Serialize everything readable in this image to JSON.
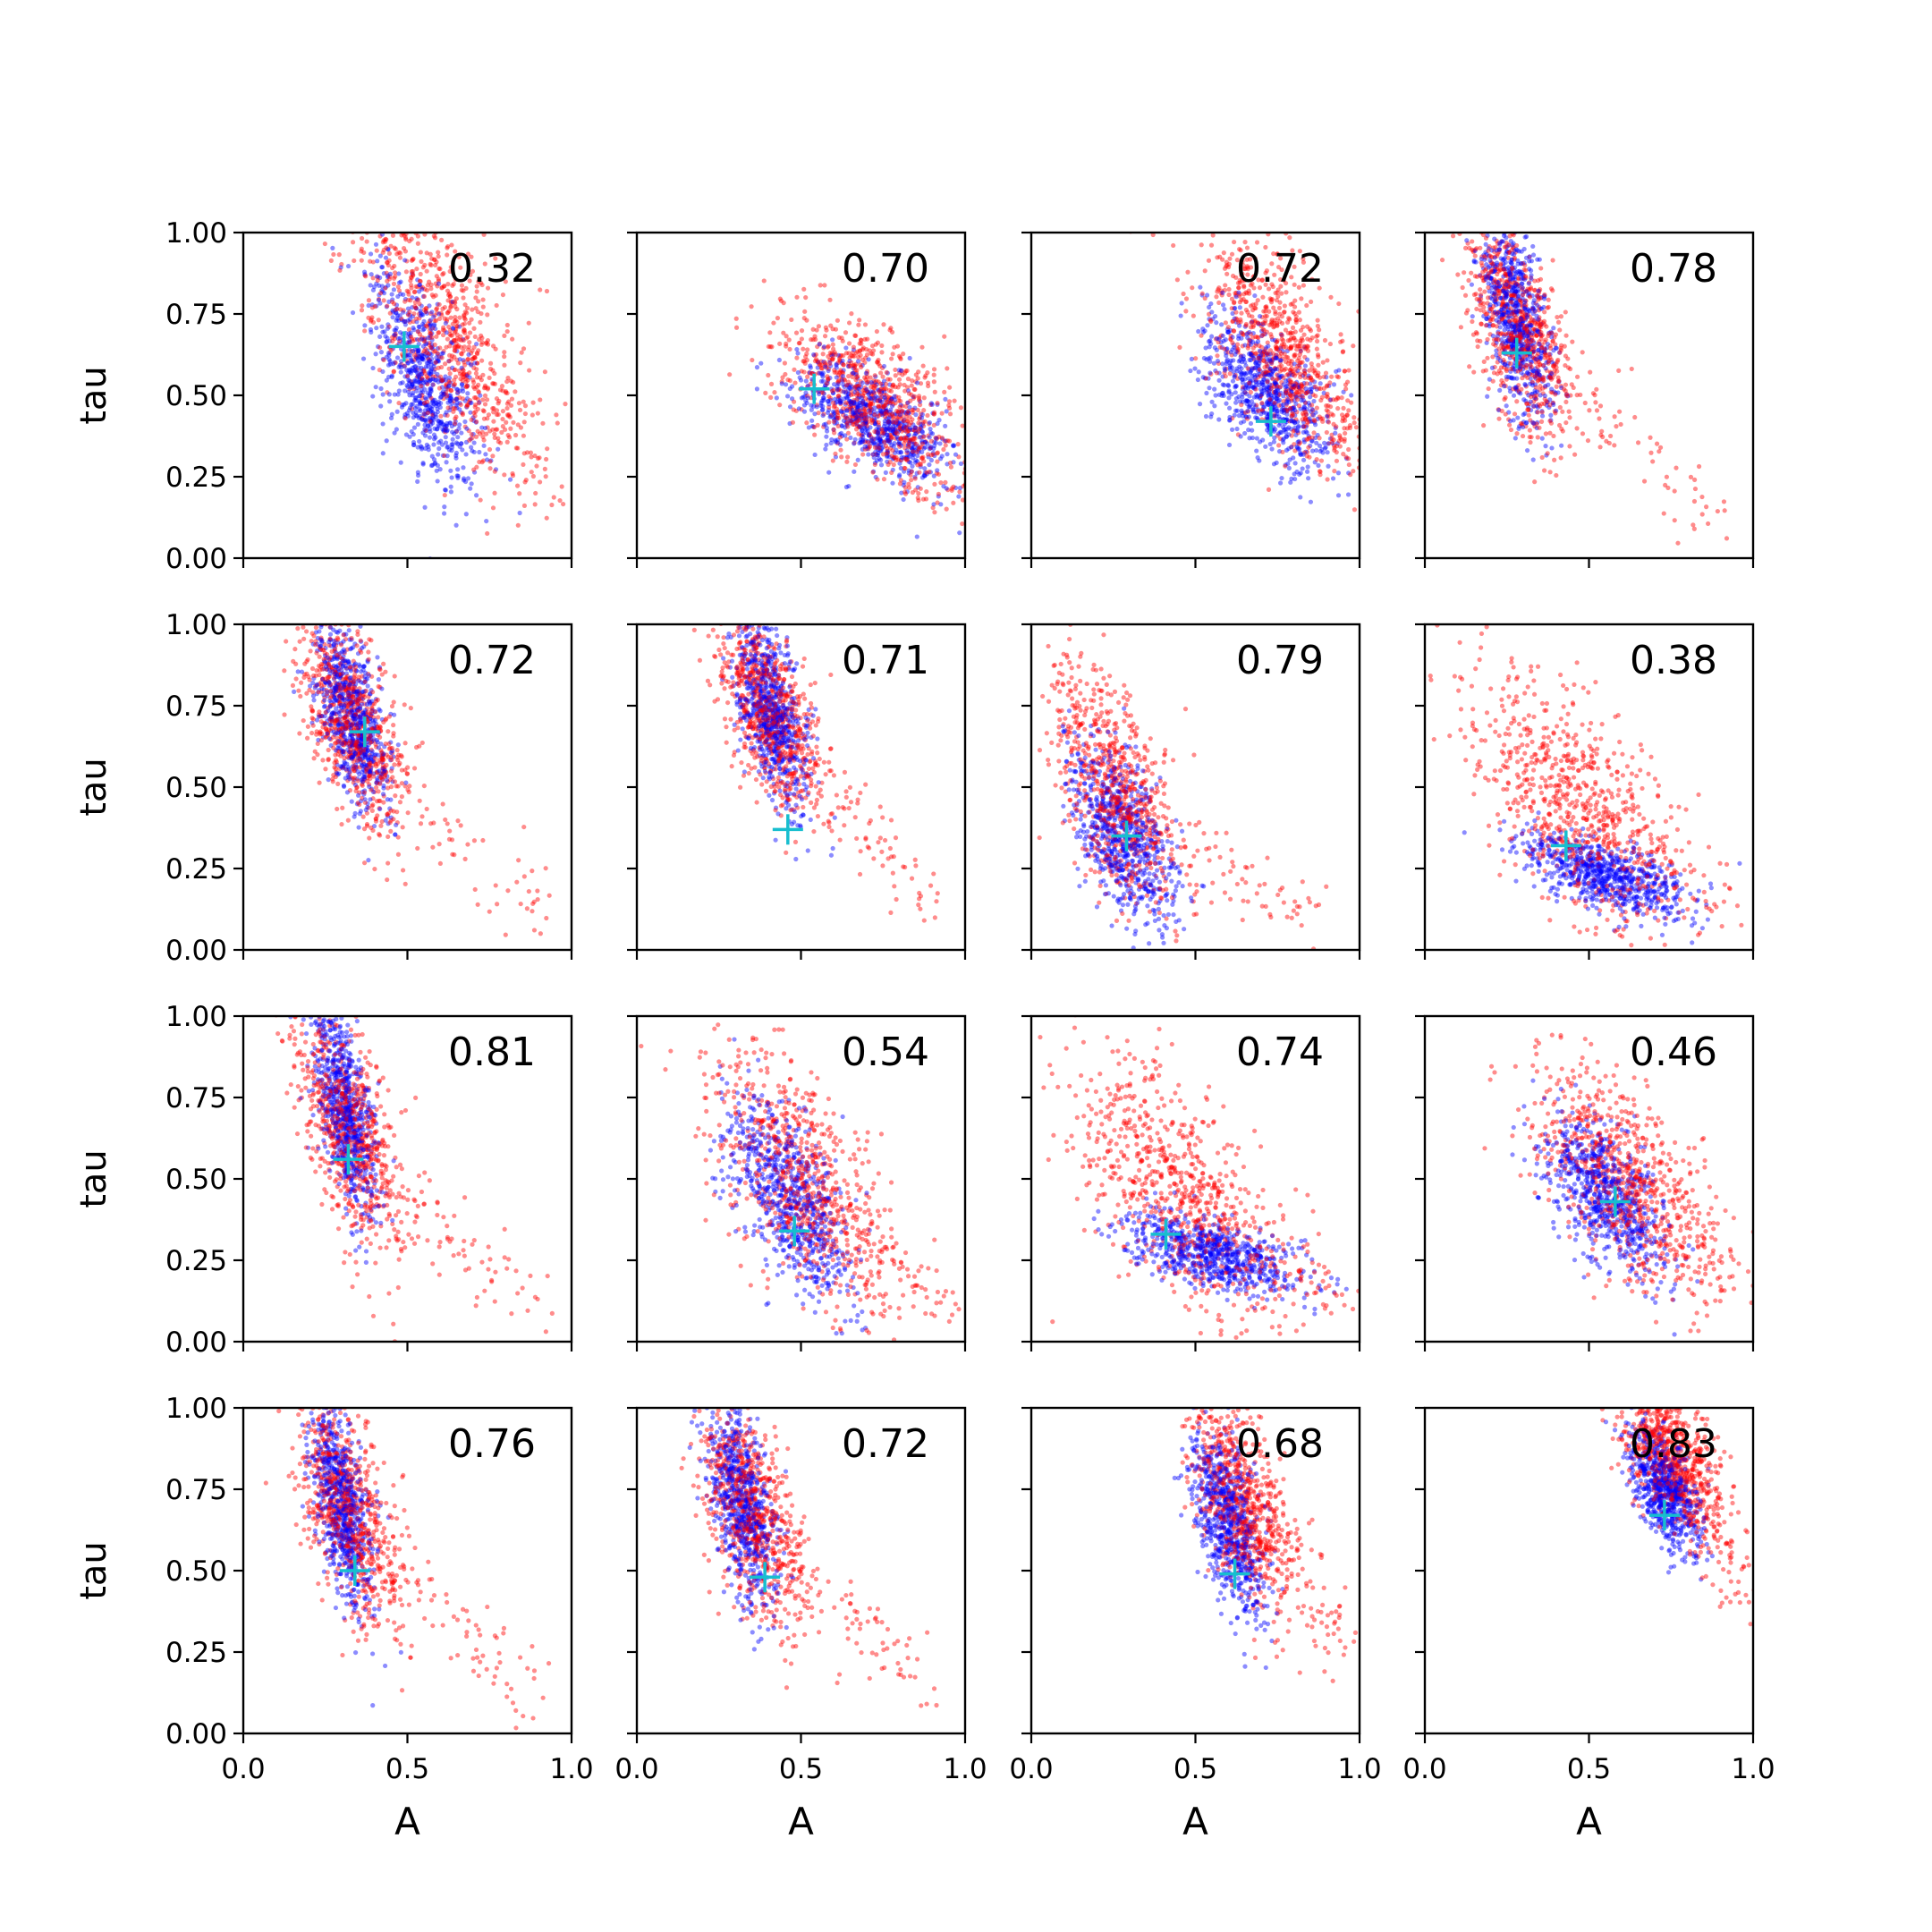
{
  "figure": {
    "xlabel": "A",
    "ylabel": "tau",
    "xticks": [
      "0.0",
      "0.5",
      "1.0"
    ],
    "yticks": [
      "0.00",
      "0.25",
      "0.50",
      "0.75",
      "1.00"
    ],
    "colors": {
      "series_blue": "#0000ff",
      "series_red": "#ff0000",
      "marker": "#17becf"
    }
  },
  "chart_data": [
    {
      "type": "scatter",
      "annotation": "0.32",
      "marker": [
        0.49,
        0.65
      ],
      "xlim": [
        0,
        1
      ],
      "ylim": [
        0,
        1
      ],
      "series": [
        {
          "color": "blue",
          "center": [
            0.55,
            0.55
          ],
          "spread": [
            0.1,
            0.22
          ]
        },
        {
          "color": "red",
          "center": [
            0.6,
            0.7
          ],
          "spread": [
            0.16,
            0.25
          ]
        }
      ],
      "tail": [
        [
          0.95,
          0.25
        ],
        [
          1.0,
          0.17
        ]
      ]
    },
    {
      "type": "scatter",
      "annotation": "0.70",
      "marker": [
        0.54,
        0.52
      ],
      "xlim": [
        0,
        1
      ],
      "ylim": [
        0,
        1
      ],
      "series": [
        {
          "color": "blue",
          "center": [
            0.72,
            0.42
          ],
          "spread": [
            0.15,
            0.12
          ]
        },
        {
          "color": "red",
          "center": [
            0.7,
            0.5
          ],
          "spread": [
            0.17,
            0.15
          ]
        }
      ],
      "tail": [
        [
          0.95,
          0.25
        ],
        [
          1.0,
          0.15
        ]
      ]
    },
    {
      "type": "scatter",
      "annotation": "0.72",
      "marker": [
        0.73,
        0.42
      ],
      "xlim": [
        0,
        1
      ],
      "ylim": [
        0,
        1
      ],
      "series": [
        {
          "color": "blue",
          "center": [
            0.72,
            0.5
          ],
          "spread": [
            0.13,
            0.15
          ]
        },
        {
          "color": "red",
          "center": [
            0.75,
            0.65
          ],
          "spread": [
            0.15,
            0.22
          ]
        }
      ],
      "tail": [
        [
          1.0,
          0.28
        ],
        [
          1.0,
          0.3
        ]
      ]
    },
    {
      "type": "scatter",
      "annotation": "0.78",
      "marker": [
        0.28,
        0.63
      ],
      "xlim": [
        0,
        1
      ],
      "ylim": [
        0,
        1
      ],
      "series": [
        {
          "color": "blue",
          "center": [
            0.28,
            0.72
          ],
          "spread": [
            0.07,
            0.2
          ]
        },
        {
          "color": "red",
          "center": [
            0.28,
            0.72
          ],
          "spread": [
            0.1,
            0.22
          ]
        }
      ],
      "tail": [
        [
          0.9,
          0.1
        ],
        [
          1.0,
          0.07
        ]
      ]
    },
    {
      "type": "scatter",
      "annotation": "0.72",
      "marker": [
        0.37,
        0.67
      ],
      "xlim": [
        0,
        1
      ],
      "ylim": [
        0,
        1
      ],
      "series": [
        {
          "color": "blue",
          "center": [
            0.33,
            0.72
          ],
          "spread": [
            0.07,
            0.18
          ]
        },
        {
          "color": "red",
          "center": [
            0.33,
            0.7
          ],
          "spread": [
            0.1,
            0.2
          ]
        }
      ],
      "tail": [
        [
          0.9,
          0.15
        ],
        [
          1.0,
          0.1
        ]
      ]
    },
    {
      "type": "scatter",
      "annotation": "0.71",
      "marker": [
        0.46,
        0.37
      ],
      "xlim": [
        0,
        1
      ],
      "ylim": [
        0,
        1
      ],
      "series": [
        {
          "color": "blue",
          "center": [
            0.41,
            0.72
          ],
          "spread": [
            0.07,
            0.18
          ]
        },
        {
          "color": "red",
          "center": [
            0.4,
            0.74
          ],
          "spread": [
            0.1,
            0.2
          ]
        }
      ],
      "tail": [
        [
          0.9,
          0.15
        ],
        [
          1.0,
          0.1
        ]
      ]
    },
    {
      "type": "scatter",
      "annotation": "0.79",
      "marker": [
        0.29,
        0.35
      ],
      "xlim": [
        0,
        1
      ],
      "ylim": [
        0,
        1
      ],
      "series": [
        {
          "color": "blue",
          "center": [
            0.28,
            0.35
          ],
          "spread": [
            0.1,
            0.18
          ]
        },
        {
          "color": "red",
          "center": [
            0.25,
            0.5
          ],
          "spread": [
            0.12,
            0.25
          ]
        }
      ],
      "tail": [
        [
          0.9,
          0.08
        ],
        [
          1.0,
          0.06
        ]
      ]
    },
    {
      "type": "scatter",
      "annotation": "0.38",
      "marker": [
        0.43,
        0.32
      ],
      "xlim": [
        0,
        1
      ],
      "ylim": [
        0,
        1
      ],
      "series": [
        {
          "color": "blue",
          "center": [
            0.55,
            0.23
          ],
          "spread": [
            0.15,
            0.08
          ]
        },
        {
          "color": "red",
          "center": [
            0.45,
            0.45
          ],
          "spread": [
            0.2,
            0.25
          ]
        }
      ],
      "tail": [
        [
          0.95,
          0.14
        ],
        [
          1.0,
          0.12
        ]
      ]
    },
    {
      "type": "scatter",
      "annotation": "0.81",
      "marker": [
        0.32,
        0.56
      ],
      "xlim": [
        0,
        1
      ],
      "ylim": [
        0,
        1
      ],
      "series": [
        {
          "color": "blue",
          "center": [
            0.31,
            0.72
          ],
          "spread": [
            0.06,
            0.2
          ]
        },
        {
          "color": "red",
          "center": [
            0.32,
            0.65
          ],
          "spread": [
            0.1,
            0.25
          ]
        }
      ],
      "tail": [
        [
          0.9,
          0.1
        ],
        [
          1.0,
          0.08
        ]
      ]
    },
    {
      "type": "scatter",
      "annotation": "0.54",
      "marker": [
        0.48,
        0.34
      ],
      "xlim": [
        0,
        1
      ],
      "ylim": [
        0,
        1
      ],
      "series": [
        {
          "color": "blue",
          "center": [
            0.46,
            0.45
          ],
          "spread": [
            0.12,
            0.2
          ]
        },
        {
          "color": "red",
          "center": [
            0.5,
            0.5
          ],
          "spread": [
            0.17,
            0.25
          ]
        }
      ],
      "tail": [
        [
          0.95,
          0.12
        ],
        [
          1.0,
          0.08
        ]
      ]
    },
    {
      "type": "scatter",
      "annotation": "0.74",
      "marker": [
        0.41,
        0.33
      ],
      "xlim": [
        0,
        1
      ],
      "ylim": [
        0,
        1
      ],
      "series": [
        {
          "color": "blue",
          "center": [
            0.55,
            0.27
          ],
          "spread": [
            0.17,
            0.08
          ]
        },
        {
          "color": "red",
          "center": [
            0.45,
            0.45
          ],
          "spread": [
            0.2,
            0.25
          ]
        }
      ],
      "tail": [
        [
          0.95,
          0.14
        ],
        [
          1.0,
          0.12
        ]
      ]
    },
    {
      "type": "scatter",
      "annotation": "0.46",
      "marker": [
        0.58,
        0.43
      ],
      "xlim": [
        0,
        1
      ],
      "ylim": [
        0,
        1
      ],
      "series": [
        {
          "color": "blue",
          "center": [
            0.55,
            0.45
          ],
          "spread": [
            0.12,
            0.15
          ]
        },
        {
          "color": "red",
          "center": [
            0.6,
            0.5
          ],
          "spread": [
            0.17,
            0.22
          ]
        }
      ],
      "tail": [
        [
          0.95,
          0.2
        ],
        [
          1.0,
          0.17
        ]
      ]
    },
    {
      "type": "scatter",
      "annotation": "0.76",
      "marker": [
        0.34,
        0.5
      ],
      "xlim": [
        0,
        1
      ],
      "ylim": [
        0,
        1
      ],
      "series": [
        {
          "color": "blue",
          "center": [
            0.3,
            0.7
          ],
          "spread": [
            0.06,
            0.2
          ]
        },
        {
          "color": "red",
          "center": [
            0.32,
            0.68
          ],
          "spread": [
            0.1,
            0.22
          ]
        }
      ],
      "tail": [
        [
          0.9,
          0.12
        ],
        [
          1.0,
          0.1
        ]
      ]
    },
    {
      "type": "scatter",
      "annotation": "0.72",
      "marker": [
        0.39,
        0.48
      ],
      "xlim": [
        0,
        1
      ],
      "ylim": [
        0,
        1
      ],
      "series": [
        {
          "color": "blue",
          "center": [
            0.32,
            0.7
          ],
          "spread": [
            0.07,
            0.2
          ]
        },
        {
          "color": "red",
          "center": [
            0.35,
            0.68
          ],
          "spread": [
            0.1,
            0.22
          ]
        }
      ],
      "tail": [
        [
          0.9,
          0.14
        ],
        [
          1.0,
          0.12
        ]
      ]
    },
    {
      "type": "scatter",
      "annotation": "0.68",
      "marker": [
        0.62,
        0.49
      ],
      "xlim": [
        0,
        1
      ],
      "ylim": [
        0,
        1
      ],
      "series": [
        {
          "color": "blue",
          "center": [
            0.6,
            0.65
          ],
          "spread": [
            0.07,
            0.18
          ]
        },
        {
          "color": "red",
          "center": [
            0.64,
            0.72
          ],
          "spread": [
            0.1,
            0.2
          ]
        }
      ],
      "tail": [
        [
          0.95,
          0.3
        ],
        [
          1.0,
          0.22
        ]
      ]
    },
    {
      "type": "scatter",
      "annotation": "0.83",
      "marker": [
        0.73,
        0.67
      ],
      "xlim": [
        0,
        1
      ],
      "ylim": [
        0,
        1
      ],
      "series": [
        {
          "color": "blue",
          "center": [
            0.73,
            0.75
          ],
          "spread": [
            0.07,
            0.12
          ]
        },
        {
          "color": "red",
          "center": [
            0.75,
            0.85
          ],
          "spread": [
            0.1,
            0.15
          ]
        }
      ],
      "tail": [
        [
          1.0,
          0.45
        ],
        [
          1.0,
          0.4
        ]
      ]
    }
  ]
}
